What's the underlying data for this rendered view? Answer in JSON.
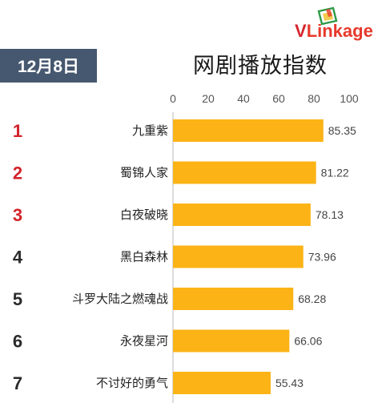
{
  "header": {
    "date": "12月8日",
    "title": "网剧播放指数",
    "logo_text": "VLinkage",
    "logo_first": "V",
    "logo_rest": "Linkage"
  },
  "colors": {
    "bar": "#fbb316",
    "badge": "#46586f",
    "rank_top": "#d2232a",
    "rank_other": "#2b2b2b"
  },
  "chart_data": {
    "type": "bar",
    "orientation": "horizontal",
    "title": "网剧播放指数",
    "ranks": [
      "1",
      "2",
      "3",
      "4",
      "5",
      "6",
      "7"
    ],
    "categories": [
      "九重紫",
      "蜀锦人家",
      "白夜破晓",
      "黑白森林",
      "斗罗大陆之燃魂战",
      "永夜星河",
      "不讨好的勇气"
    ],
    "values": [
      85.35,
      81.22,
      78.13,
      73.96,
      68.28,
      66.06,
      55.43
    ],
    "value_labels": [
      "85.35",
      "81.22",
      "78.13",
      "73.96",
      "68.28",
      "66.06",
      "55.43"
    ],
    "xlim": [
      0,
      100
    ],
    "x_ticks": [
      "0",
      "20",
      "40",
      "60",
      "80",
      "100"
    ],
    "grid": false,
    "axis_position": "top"
  }
}
